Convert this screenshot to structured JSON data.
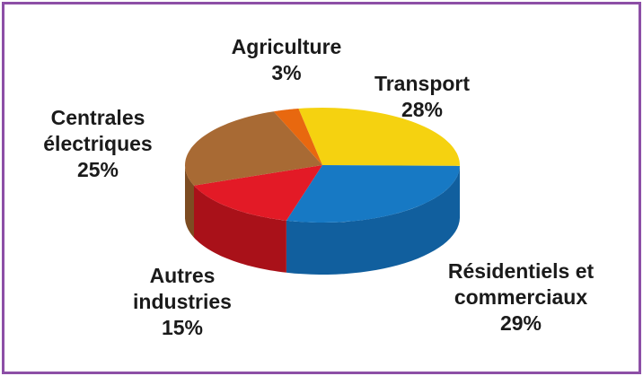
{
  "chart_data": {
    "type": "pie",
    "style": "3d-exploded-look",
    "slices": [
      {
        "label_lines": [
          "Transport"
        ],
        "value_label": "28%",
        "value": 28,
        "color": "#f5d210",
        "side_color": "#d8b40b"
      },
      {
        "label_lines": [
          "Résidentiels et",
          "commerciaux"
        ],
        "value_label": "29%",
        "value": 29,
        "color": "#1779c4",
        "side_color": "#115f9e"
      },
      {
        "label_lines": [
          "Autres",
          "industries"
        ],
        "value_label": "15%",
        "value": 15,
        "color": "#e31a26",
        "side_color": "#a91119"
      },
      {
        "label_lines": [
          "Centrales",
          "électriques"
        ],
        "value_label": "25%",
        "value": 25,
        "color": "#a86a34",
        "side_color": "#7d4c22"
      },
      {
        "label_lines": [
          "Agriculture"
        ],
        "value_label": "3%",
        "value": 3,
        "color": "#e8680f",
        "side_color": "#b44f0a"
      }
    ],
    "legend": "none"
  },
  "colors": {
    "frame_border": "#8d4fa6",
    "background": "#ffffff"
  }
}
